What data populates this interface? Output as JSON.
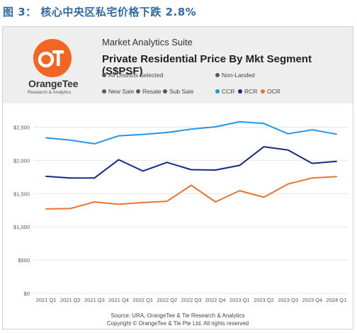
{
  "figure_title": "图 3： 核心中央区私宅价格下跌 2.8%",
  "logo": {
    "brand": "OrangeTee",
    "tagline": "Research & Analytics",
    "mark_text": "OT"
  },
  "header": {
    "suite": "Market Analytics Suite",
    "title": "Private Residential Price By Mkt Segment (S$PSF)"
  },
  "filters": {
    "districts": "All Districts Selected",
    "landed": "Non-Landed",
    "sale_types": [
      "New Sale",
      "Resale",
      "Sub Sale"
    ],
    "filter_dot_color": "#595959"
  },
  "legend": [
    {
      "name": "CCR",
      "color": "#2196e8"
    },
    {
      "name": "RCR",
      "color": "#132a84"
    },
    {
      "name": "OCR",
      "color": "#e8742f"
    }
  ],
  "chart_data": {
    "type": "line",
    "title": "Private Residential Price By Mkt Segment (S$PSF)",
    "xlabel": "",
    "ylabel": "",
    "categories": [
      "2021 Q1",
      "2021 Q2",
      "2021 Q3",
      "2021 Q4",
      "2022 Q1",
      "2022 Q2",
      "2022 Q3",
      "2022 Q4",
      "2023 Q1",
      "2023 Q2",
      "2023 Q3",
      "2023 Q4",
      "2024 Q1"
    ],
    "ylim": [
      0,
      2750
    ],
    "yticks": [
      0,
      500,
      1000,
      1500,
      2000,
      2500
    ],
    "ytick_labels": [
      "$0",
      "$500",
      "$1,000",
      "$1,500",
      "$2,000",
      "$2,500"
    ],
    "grid": true,
    "legend_position": "top-right",
    "series": [
      {
        "name": "CCR",
        "color": "#2196e8",
        "values": [
          2340,
          2305,
          2250,
          2370,
          2390,
          2420,
          2470,
          2505,
          2580,
          2555,
          2400,
          2460,
          2395
        ]
      },
      {
        "name": "RCR",
        "color": "#132a84",
        "values": [
          1760,
          1735,
          1735,
          2010,
          1840,
          1970,
          1860,
          1855,
          1925,
          2205,
          2155,
          1955,
          1985
        ]
      },
      {
        "name": "OCR",
        "color": "#e8742f",
        "values": [
          1270,
          1275,
          1375,
          1340,
          1365,
          1385,
          1625,
          1375,
          1545,
          1445,
          1645,
          1735,
          1755
        ]
      }
    ]
  },
  "source": {
    "line1": "Source: URA, OrangeTee & Tie Research & Analytics",
    "line2": "Copyright © OrangeTee & Tie Pte Ltd. All rights reserved"
  }
}
